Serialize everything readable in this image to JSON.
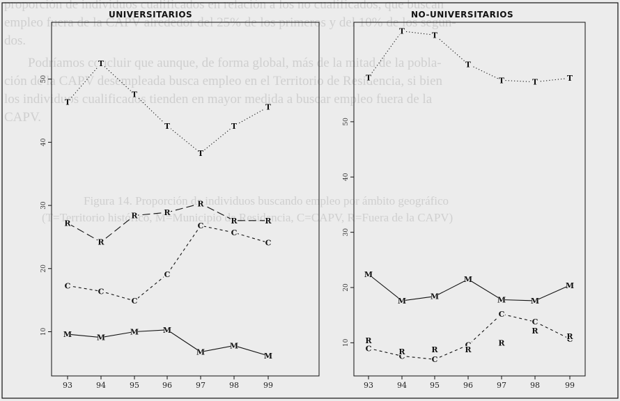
{
  "background_text": [
    "proporción de individuos cualificados en relación a los no cualificados, que buscan",
    "empleo fuera de la CAPV alrededor del 25% de los primeros y del 10% de los segun-",
    "dos.",
    "Podríamos concluir que aunque, de forma global, más de la mitad de la pobla-",
    "ción de la CAPV desempleada busca empleo en el Territorio de Residencia, si bien",
    "los individuos cualificados tienden en mayor medida a buscar empleo fuera de la",
    "CAPV.",
    "Figura 14.  Proporción de individuos buscando empleo por ámbito geográfico",
    "(T=Territorio histórico, M=Municipio de Residencia, C=CAPV, R=Fuera de la CAPV)"
  ],
  "colors": {
    "ink": "#111111",
    "paper": "#ececec",
    "ghost": "#cfcfcf"
  },
  "chart_data": [
    {
      "type": "line",
      "title": "UNIVERSITARIOS",
      "x": [
        "93",
        "94",
        "95",
        "96",
        "97",
        "98",
        "99"
      ],
      "ylim": [
        3,
        59
      ],
      "yticks": [
        10,
        20,
        30,
        40,
        50
      ],
      "series": [
        {
          "name": "T",
          "style": "dotted",
          "values": [
            46.4,
            52.5,
            47.6,
            42.6,
            38.3,
            42.6,
            45.6
          ]
        },
        {
          "name": "R",
          "style": "longdash",
          "values": [
            27.2,
            24.2,
            28.4,
            28.9,
            30.3,
            27.6,
            27.6
          ]
        },
        {
          "name": "C",
          "style": "dashed",
          "values": [
            17.3,
            16.4,
            14.9,
            19.1,
            26.8,
            25.7,
            24.1
          ]
        },
        {
          "name": "M",
          "style": "solid",
          "values": [
            9.6,
            9.1,
            10.0,
            10.3,
            6.8,
            7.8,
            6.2
          ]
        }
      ]
    },
    {
      "type": "line",
      "title": "NO-UNIVERSITARIOS",
      "x": [
        "93",
        "94",
        "95",
        "96",
        "97",
        "98",
        "99"
      ],
      "ylim": [
        4,
        68
      ],
      "yticks": [
        10,
        20,
        30,
        40,
        50
      ],
      "series": [
        {
          "name": "T",
          "style": "dotted",
          "values": [
            58.0,
            66.4,
            65.7,
            60.4,
            57.5,
            57.2,
            57.9
          ]
        },
        {
          "name": "M",
          "style": "solid",
          "values": [
            22.4,
            17.6,
            18.4,
            21.5,
            17.8,
            17.6,
            20.4
          ]
        },
        {
          "name": "C",
          "style": "dashed",
          "values": [
            9.0,
            7.6,
            7.0,
            9.6,
            15.2,
            13.8,
            10.7
          ]
        },
        {
          "name": "R",
          "style": "none",
          "values": [
            10.4,
            8.4,
            8.8,
            8.8,
            10.0,
            12.2,
            11.2
          ]
        }
      ]
    }
  ]
}
